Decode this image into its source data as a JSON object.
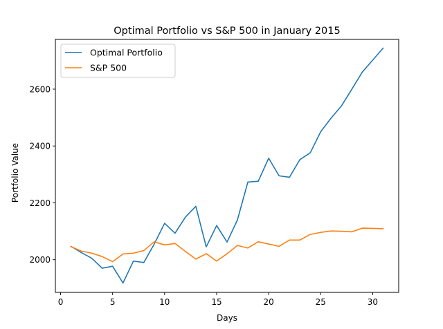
{
  "chart_data": {
    "type": "line",
    "title": "Optimal Portfolio vs S&P 500 in January 2015",
    "xlabel": "Days",
    "ylabel": "Portfolio Value",
    "xlim": [
      -0.5,
      32.5
    ],
    "ylim": [
      1885,
      2775
    ],
    "xticks": [
      0,
      5,
      10,
      15,
      20,
      25,
      30
    ],
    "yticks": [
      2000,
      2200,
      2400,
      2600
    ],
    "grid": false,
    "legend_position": "top-left",
    "x": [
      1,
      2,
      3,
      4,
      5,
      6,
      7,
      8,
      9,
      10,
      11,
      12,
      13,
      14,
      15,
      16,
      17,
      18,
      19,
      20,
      21,
      22,
      23,
      24,
      25,
      26,
      27,
      28,
      29,
      30,
      31
    ],
    "series": [
      {
        "name": "Optimal Portfolio",
        "color": "#1f77b4",
        "values": [
          2047,
          2025,
          2005,
          1970,
          1977,
          1918,
          1995,
          1990,
          2055,
          2128,
          2093,
          2150,
          2188,
          2045,
          2120,
          2062,
          2140,
          2273,
          2276,
          2357,
          2295,
          2290,
          2352,
          2376,
          2450,
          2498,
          2541,
          2600,
          2660,
          2702,
          2744
        ]
      },
      {
        "name": "S&P 500",
        "color": "#ff7f0e",
        "values": [
          2046,
          2030,
          2023,
          2011,
          1993,
          2020,
          2023,
          2032,
          2063,
          2052,
          2057,
          2029,
          2002,
          2021,
          1995,
          2021,
          2050,
          2041,
          2063,
          2055,
          2047,
          2069,
          2069,
          2089,
          2096,
          2101,
          2100,
          2098,
          2111,
          2110,
          2109
        ]
      }
    ]
  }
}
